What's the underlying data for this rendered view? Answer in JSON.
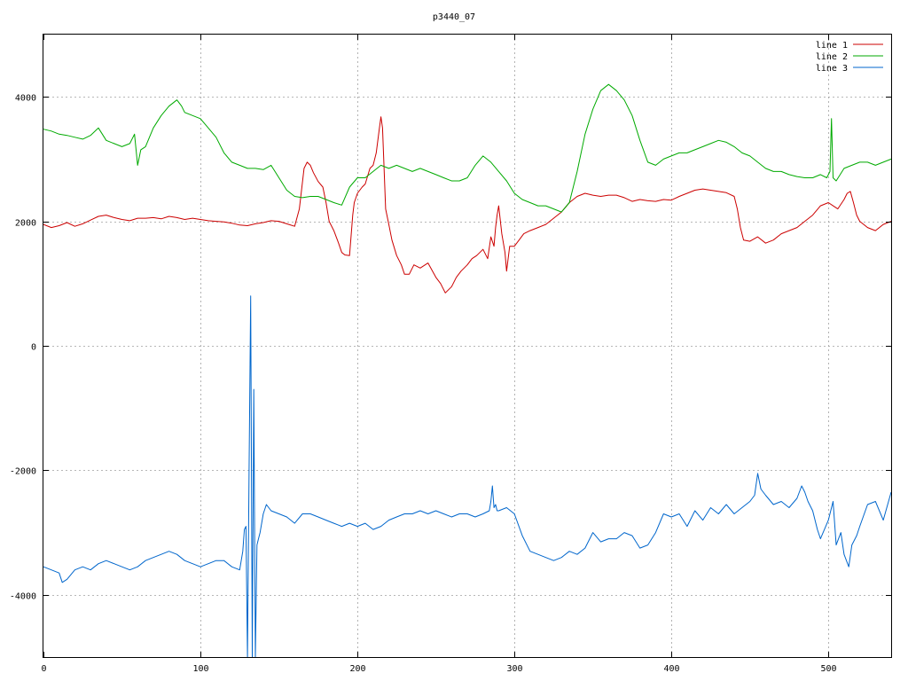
{
  "chart_data": {
    "type": "line",
    "title": "p3440_07",
    "xlabel": "",
    "ylabel": "",
    "xlim": [
      0,
      540
    ],
    "ylim": [
      -5000,
      5000
    ],
    "xticks": [
      0,
      100,
      200,
      300,
      400,
      500
    ],
    "yticks": [
      -4000,
      -2000,
      0,
      2000,
      4000
    ],
    "grid": true,
    "legend_position": "top-right",
    "series": [
      {
        "name": "line 1",
        "color": "#cc0000",
        "x": [
          0,
          5,
          10,
          15,
          20,
          25,
          30,
          35,
          40,
          45,
          50,
          55,
          60,
          65,
          70,
          75,
          80,
          85,
          90,
          95,
          100,
          105,
          110,
          115,
          120,
          125,
          130,
          135,
          140,
          145,
          150,
          155,
          160,
          163,
          166,
          168,
          170,
          172,
          175,
          178,
          180,
          182,
          185,
          188,
          190,
          192,
          195,
          197,
          198,
          200,
          203,
          205,
          208,
          210,
          212,
          214,
          215,
          216,
          218,
          220,
          222,
          225,
          228,
          230,
          233,
          236,
          240,
          245,
          250,
          253,
          256,
          260,
          263,
          266,
          270,
          273,
          276,
          280,
          283,
          285,
          287,
          288,
          289,
          290,
          292,
          294,
          295,
          297,
          300,
          303,
          306,
          310,
          315,
          320,
          325,
          330,
          335,
          340,
          345,
          350,
          355,
          360,
          365,
          370,
          375,
          380,
          385,
          390,
          395,
          400,
          405,
          410,
          415,
          420,
          425,
          430,
          435,
          440,
          442,
          444,
          446,
          450,
          455,
          460,
          465,
          470,
          475,
          480,
          485,
          490,
          495,
          500,
          503,
          506,
          510,
          512,
          514,
          516,
          518,
          520,
          525,
          530,
          535,
          540
        ],
        "y": [
          1950,
          1900,
          1930,
          1980,
          1920,
          1960,
          2020,
          2080,
          2100,
          2060,
          2030,
          2010,
          2050,
          2050,
          2060,
          2040,
          2080,
          2060,
          2030,
          2050,
          2030,
          2010,
          2000,
          1990,
          1970,
          1940,
          1930,
          1960,
          1980,
          2010,
          2000,
          1960,
          1920,
          2200,
          2850,
          2950,
          2900,
          2780,
          2640,
          2550,
          2300,
          2000,
          1850,
          1650,
          1500,
          1460,
          1450,
          2100,
          2300,
          2450,
          2550,
          2600,
          2850,
          2900,
          3100,
          3500,
          3680,
          3500,
          2200,
          1950,
          1700,
          1450,
          1300,
          1150,
          1150,
          1300,
          1250,
          1330,
          1100,
          1000,
          850,
          950,
          1100,
          1200,
          1300,
          1400,
          1450,
          1550,
          1400,
          1750,
          1600,
          1900,
          2100,
          2250,
          1800,
          1500,
          1200,
          1600,
          1600,
          1700,
          1800,
          1850,
          1900,
          1950,
          2050,
          2150,
          2300,
          2400,
          2450,
          2420,
          2400,
          2420,
          2420,
          2380,
          2320,
          2350,
          2330,
          2320,
          2350,
          2340,
          2400,
          2450,
          2500,
          2520,
          2500,
          2480,
          2460,
          2400,
          2200,
          1900,
          1700,
          1680,
          1750,
          1650,
          1700,
          1800,
          1850,
          1900,
          2000,
          2100,
          2250,
          2300,
          2250,
          2200,
          2350,
          2450,
          2480,
          2300,
          2100,
          2000,
          1900,
          1850,
          1950,
          2000
        ]
      },
      {
        "name": "line 2",
        "color": "#00aa00",
        "x": [
          0,
          5,
          10,
          15,
          20,
          25,
          30,
          35,
          40,
          45,
          50,
          55,
          58,
          60,
          62,
          65,
          70,
          75,
          80,
          85,
          88,
          90,
          95,
          100,
          105,
          110,
          115,
          120,
          125,
          130,
          135,
          140,
          145,
          150,
          155,
          160,
          165,
          170,
          175,
          180,
          185,
          190,
          195,
          200,
          205,
          210,
          215,
          220,
          225,
          230,
          235,
          240,
          245,
          250,
          255,
          260,
          265,
          270,
          275,
          280,
          285,
          290,
          295,
          300,
          305,
          310,
          315,
          320,
          325,
          330,
          335,
          340,
          345,
          350,
          355,
          360,
          365,
          370,
          375,
          380,
          385,
          390,
          395,
          400,
          405,
          410,
          415,
          420,
          425,
          430,
          435,
          440,
          445,
          450,
          455,
          460,
          465,
          470,
          475,
          480,
          485,
          490,
          495,
          499,
          501,
          502,
          503,
          505,
          510,
          515,
          520,
          525,
          530,
          535,
          540
        ],
        "y": [
          3480,
          3450,
          3400,
          3380,
          3350,
          3320,
          3380,
          3500,
          3300,
          3250,
          3200,
          3250,
          3400,
          2900,
          3150,
          3200,
          3500,
          3700,
          3850,
          3950,
          3850,
          3750,
          3700,
          3650,
          3500,
          3350,
          3100,
          2950,
          2900,
          2850,
          2850,
          2830,
          2900,
          2700,
          2500,
          2400,
          2380,
          2400,
          2400,
          2350,
          2300,
          2260,
          2550,
          2700,
          2700,
          2800,
          2900,
          2850,
          2900,
          2850,
          2800,
          2850,
          2800,
          2750,
          2700,
          2650,
          2650,
          2700,
          2900,
          3050,
          2950,
          2800,
          2650,
          2450,
          2350,
          2300,
          2250,
          2250,
          2200,
          2150,
          2300,
          2800,
          3400,
          3800,
          4100,
          4200,
          4100,
          3950,
          3700,
          3300,
          2950,
          2900,
          3000,
          3050,
          3100,
          3100,
          3150,
          3200,
          3250,
          3300,
          3270,
          3200,
          3100,
          3050,
          2950,
          2850,
          2800,
          2800,
          2750,
          2720,
          2700,
          2700,
          2750,
          2700,
          2800,
          3650,
          2700,
          2650,
          2850,
          2900,
          2950,
          2950,
          2900,
          2950,
          3000
        ]
      },
      {
        "name": "line 3",
        "color": "#0066cc",
        "x": [
          0,
          5,
          10,
          12,
          15,
          20,
          25,
          30,
          35,
          40,
          45,
          50,
          55,
          60,
          65,
          70,
          75,
          80,
          85,
          90,
          95,
          100,
          105,
          110,
          115,
          120,
          125,
          127,
          128,
          129,
          130,
          131,
          132,
          133,
          134,
          135,
          136,
          137,
          138,
          140,
          142,
          145,
          150,
          155,
          160,
          165,
          170,
          175,
          180,
          185,
          190,
          195,
          200,
          205,
          210,
          215,
          220,
          225,
          230,
          235,
          240,
          245,
          250,
          255,
          260,
          265,
          270,
          275,
          280,
          284,
          285,
          286,
          287,
          288,
          289,
          290,
          295,
          300,
          305,
          310,
          315,
          320,
          325,
          330,
          335,
          340,
          345,
          350,
          355,
          360,
          365,
          370,
          375,
          380,
          385,
          390,
          395,
          400,
          405,
          410,
          415,
          420,
          425,
          430,
          435,
          440,
          445,
          450,
          453,
          455,
          457,
          460,
          465,
          470,
          475,
          480,
          483,
          485,
          487,
          490,
          493,
          495,
          500,
          503,
          505,
          508,
          510,
          513,
          515,
          518,
          520,
          525,
          530,
          535,
          540
        ],
        "y": [
          -3550,
          -3600,
          -3650,
          -3800,
          -3750,
          -3600,
          -3550,
          -3600,
          -3500,
          -3450,
          -3500,
          -3550,
          -3600,
          -3550,
          -3450,
          -3400,
          -3350,
          -3300,
          -3350,
          -3450,
          -3500,
          -3550,
          -3500,
          -3450,
          -3450,
          -3550,
          -3600,
          -3300,
          -2950,
          -2900,
          -5000,
          -2000,
          800,
          -5000,
          -700,
          -5000,
          -3200,
          -3100,
          -3000,
          -2700,
          -2550,
          -2650,
          -2700,
          -2750,
          -2850,
          -2700,
          -2700,
          -2750,
          -2800,
          -2850,
          -2900,
          -2850,
          -2900,
          -2850,
          -2950,
          -2900,
          -2800,
          -2750,
          -2700,
          -2700,
          -2650,
          -2700,
          -2650,
          -2700,
          -2750,
          -2700,
          -2700,
          -2750,
          -2700,
          -2650,
          -2500,
          -2250,
          -2600,
          -2550,
          -2650,
          -2650,
          -2600,
          -2700,
          -3050,
          -3300,
          -3350,
          -3400,
          -3450,
          -3400,
          -3300,
          -3350,
          -3250,
          -3000,
          -3150,
          -3100,
          -3100,
          -3000,
          -3050,
          -3250,
          -3200,
          -3000,
          -2700,
          -2750,
          -2700,
          -2900,
          -2650,
          -2800,
          -2600,
          -2700,
          -2550,
          -2700,
          -2600,
          -2500,
          -2400,
          -2050,
          -2300,
          -2400,
          -2550,
          -2500,
          -2600,
          -2450,
          -2250,
          -2350,
          -2500,
          -2650,
          -2950,
          -3100,
          -2800,
          -2500,
          -3200,
          -3000,
          -3350,
          -3550,
          -3200,
          -3050,
          -2900,
          -2550,
          -2500,
          -2800,
          -2350
        ]
      }
    ]
  }
}
